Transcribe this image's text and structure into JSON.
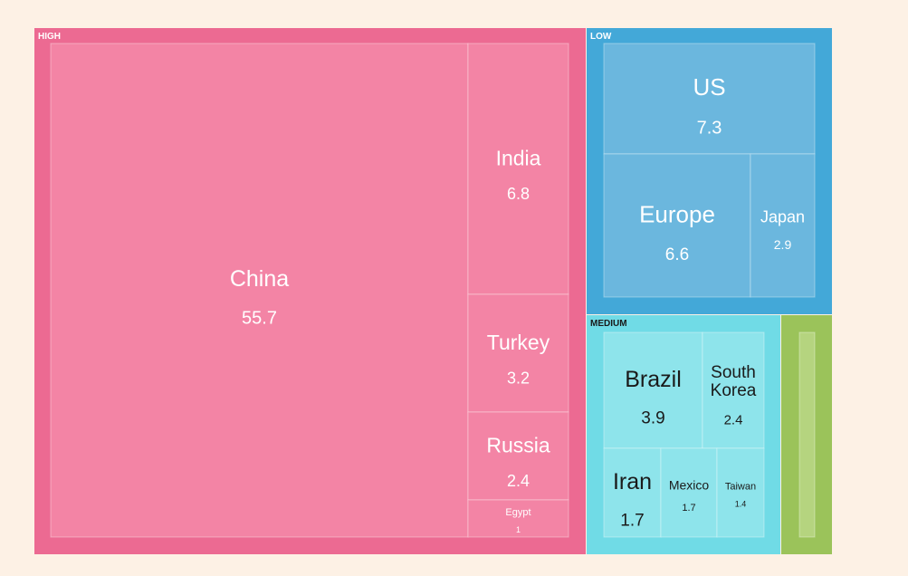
{
  "chart_data": {
    "type": "treemap",
    "groups": [
      {
        "name": "HIGH",
        "color": "#ec6a92",
        "tile_color": "#f384a5",
        "text_color": "#ffffff",
        "items": [
          {
            "label": "China",
            "value_text": "55.7",
            "value": 55.7
          },
          {
            "label": "India",
            "value_text": "6.8",
            "value": 6.8
          },
          {
            "label": "Turkey",
            "value_text": "3.2",
            "value": 3.2
          },
          {
            "label": "Russia",
            "value_text": "2.4",
            "value": 2.4
          },
          {
            "label": "Egypt",
            "value_text": "1",
            "value": 1
          }
        ]
      },
      {
        "name": "LOW",
        "color": "#43a8d8",
        "tile_color": "#6bb7de",
        "text_color": "#ffffff",
        "items": [
          {
            "label": "US",
            "value_text": "7.3",
            "value": 7.3
          },
          {
            "label": "Europe",
            "value_text": "6.6",
            "value": 6.6
          },
          {
            "label": "Japan",
            "value_text": "2.9",
            "value": 2.9
          }
        ]
      },
      {
        "name": "MEDIUM",
        "color": "#70dbe6",
        "tile_color": "#8ee4eb",
        "text_color": "#1a1a1a",
        "items": [
          {
            "label": "Brazil",
            "value_text": "3.9",
            "value": 3.9
          },
          {
            "label": "South Korea",
            "value_text": "2.4",
            "value": 2.4
          },
          {
            "label": "Iran",
            "value_text": "1.7",
            "value": 1.7
          },
          {
            "label": "Mexico",
            "value_text": "1.7",
            "value": 1.7
          },
          {
            "label": "Taiwan",
            "value_text": "1.4",
            "value": 1.4
          }
        ]
      },
      {
        "name": "",
        "color": "#9bc35a",
        "tile_color": "#b5d47f",
        "text_color": "#1a1a1a",
        "items": [
          {
            "label": "",
            "value_text": "",
            "value": null
          }
        ]
      }
    ]
  }
}
